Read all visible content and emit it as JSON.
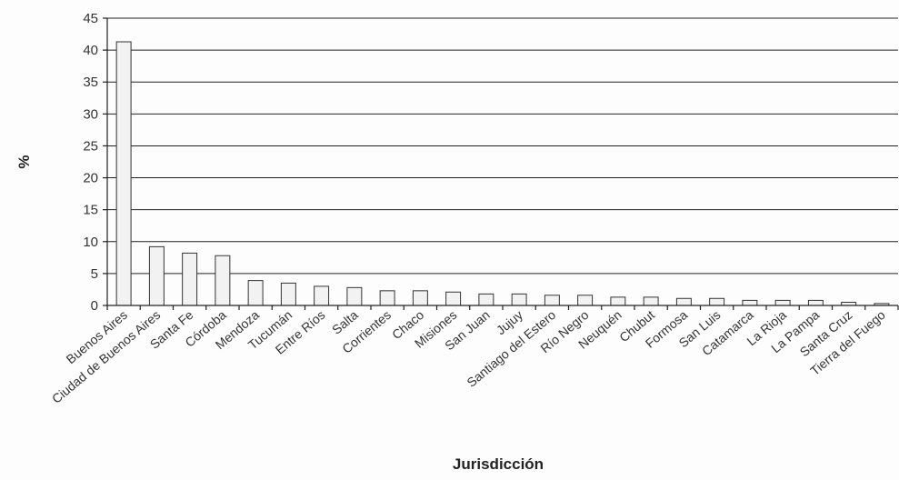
{
  "chart_data": {
    "type": "bar",
    "title": "",
    "xlabel": "Jurisdicción",
    "ylabel": "%",
    "ylim": [
      0,
      45
    ],
    "yticks": [
      0,
      5,
      10,
      15,
      20,
      25,
      30,
      35,
      40,
      45
    ],
    "grid": true,
    "legend": false,
    "bar_color": "#f2f2f2",
    "categories": [
      "Buenos Aires",
      "Ciudad de Buenos Aires",
      "Santa Fe",
      "Córdoba",
      "Mendoza",
      "Tucumán",
      "Entre Ríos",
      "Salta",
      "Corrientes",
      "Chaco",
      "Misiones",
      "San Juan",
      "Jujuy",
      "Santiago del Estero",
      "Río Negro",
      "Neuquén",
      "Chubut",
      "Formosa",
      "San Luis",
      "Catamarca",
      "La Rioja",
      "La Pampa",
      "Santa Cruz",
      "Tierra del Fuego"
    ],
    "values": [
      41.3,
      9.2,
      8.2,
      7.8,
      3.9,
      3.5,
      3.0,
      2.8,
      2.3,
      2.3,
      2.1,
      1.8,
      1.8,
      1.6,
      1.6,
      1.3,
      1.3,
      1.1,
      1.1,
      0.8,
      0.8,
      0.8,
      0.5,
      0.3
    ]
  }
}
